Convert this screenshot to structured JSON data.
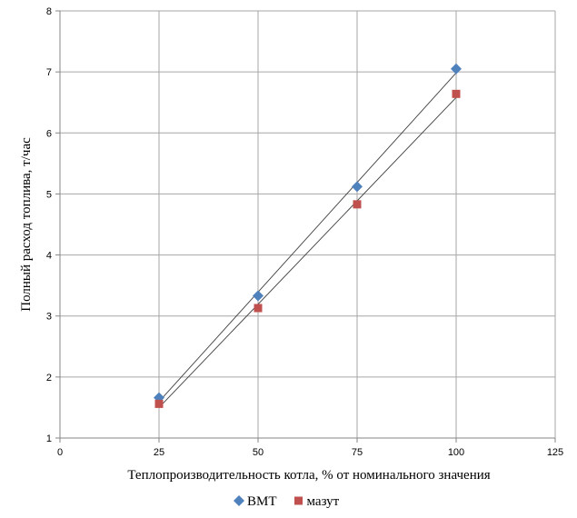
{
  "chart_data": {
    "type": "scatter",
    "xlabel": "Теплопроизводительность котла, % от номинального значения",
    "ylabel": "Полный расход топлива, т/час",
    "xlim": [
      0,
      125
    ],
    "ylim": [
      1,
      8
    ],
    "xticks": [
      0,
      25,
      50,
      75,
      100,
      125
    ],
    "yticks": [
      1,
      2,
      3,
      4,
      5,
      6,
      7,
      8
    ],
    "grid": true,
    "legend_position": "bottom",
    "trendlines": "linear",
    "series": [
      {
        "name": "ВМТ",
        "marker": "diamond",
        "color": "#4F81BD",
        "x": [
          25,
          50,
          75,
          100
        ],
        "y": [
          1.66,
          3.33,
          5.12,
          7.05
        ]
      },
      {
        "name": "мазут",
        "marker": "square",
        "color": "#C0504D",
        "x": [
          25,
          50,
          75,
          100
        ],
        "y": [
          1.56,
          3.13,
          4.83,
          6.64
        ]
      }
    ]
  }
}
